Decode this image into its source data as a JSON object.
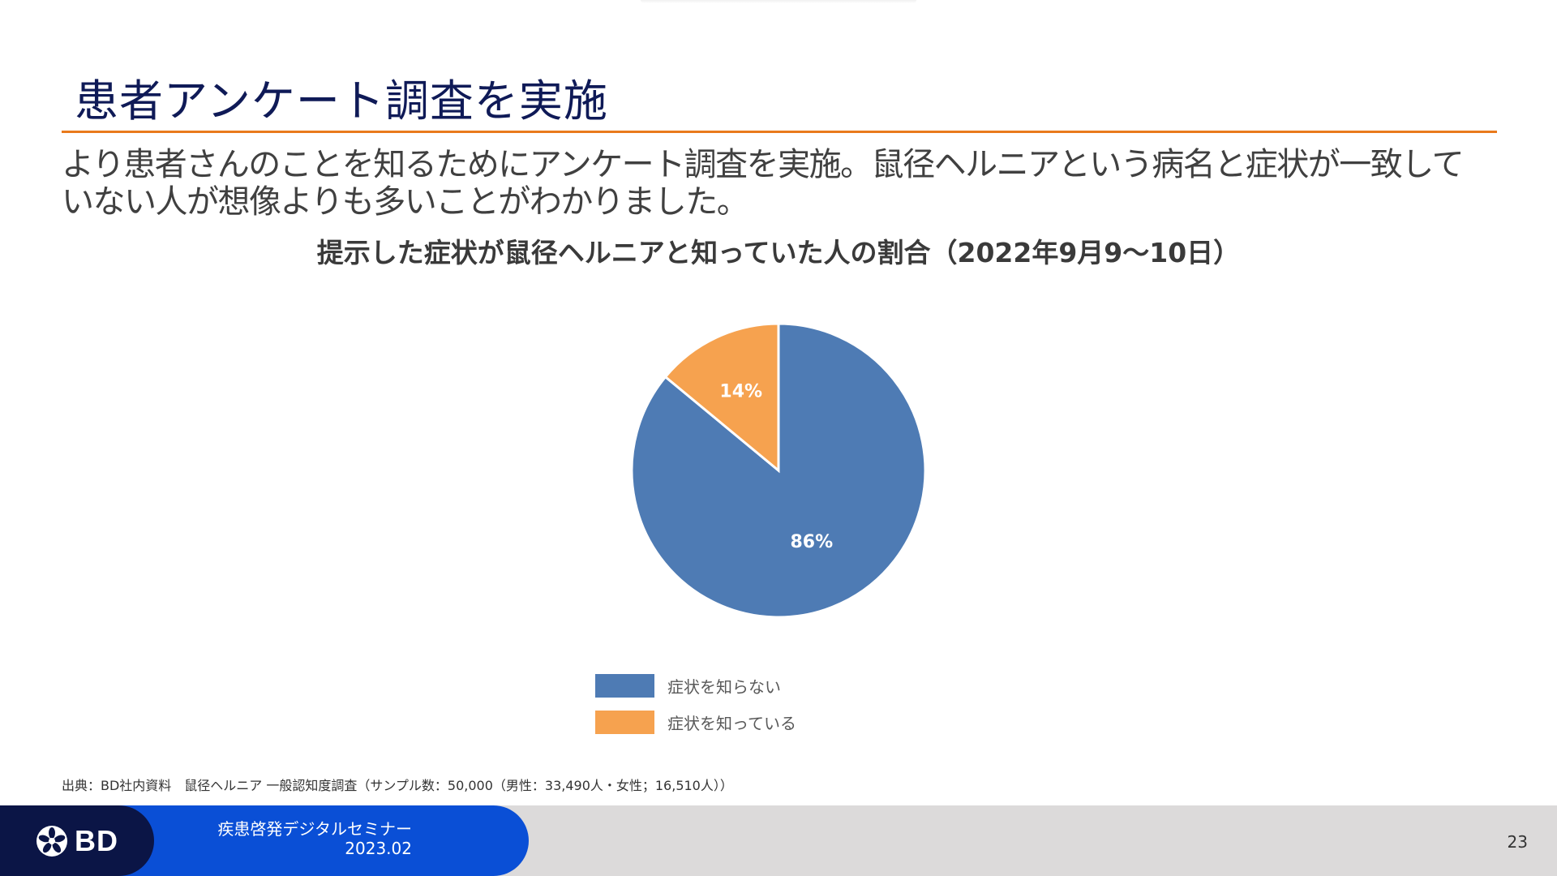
{
  "slide": {
    "title": "患者アンケート調査を実施",
    "lead": "より患者さんのことを知るためにアンケート調査を実施。鼠径ヘルニアという病名と症状が一致していない人が想像よりも多いことがわかりました。",
    "source_note": "出典：BD社内資料　鼠径ヘルニア 一般認知度調査（サンプル数：50,000（男性：33,490人・女性；16,510人））",
    "page_number": "23"
  },
  "footer": {
    "logo_text": "BD",
    "seminar_title": "疾患啓発デジタルセミナー",
    "seminar_date": "2023.02"
  },
  "colors": {
    "accent_orange": "#e97a1c",
    "title_navy": "#0f1a57",
    "footer_blue": "#0a4fd6",
    "footer_navy": "#0b1546"
  },
  "chart_data": {
    "type": "pie",
    "title": "提示した症状が鼠径ヘルニアと知っていた人の割合（2022年9月9～10日）",
    "categories": [
      "症状を知らない",
      "症状を知っている"
    ],
    "values": [
      86,
      14
    ],
    "labels": [
      "86%",
      "14%"
    ],
    "colors": [
      "#4e7bb4",
      "#f6a24f"
    ],
    "legend_position": "bottom"
  }
}
